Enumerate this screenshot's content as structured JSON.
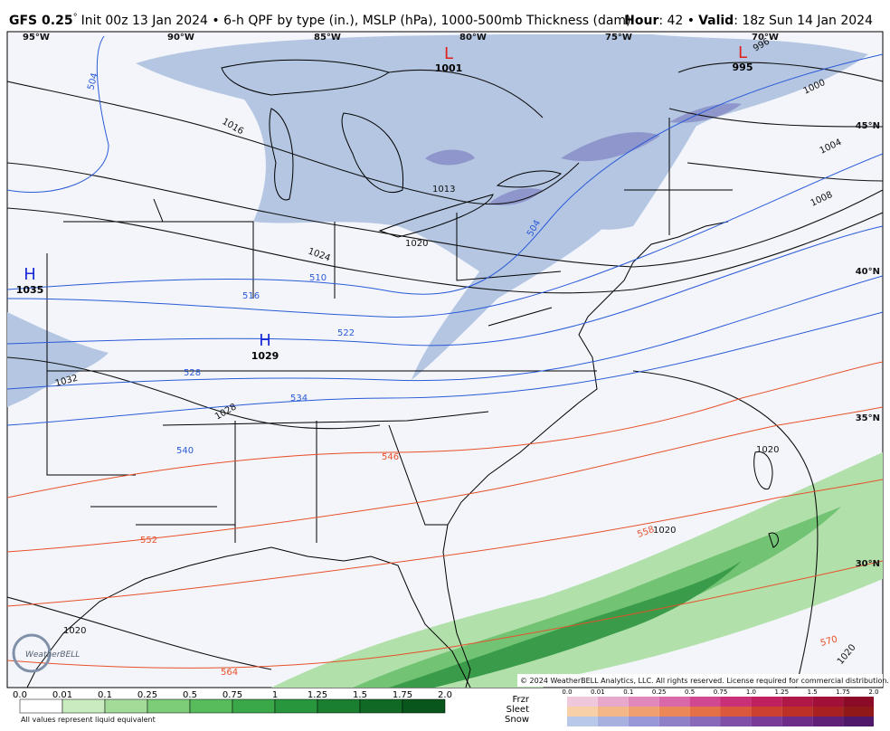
{
  "header": {
    "model": "GFS 0.25",
    "degree": "°",
    "title": "Init 00z 13 Jan 2024 • 6-h QPF by type (in.), MSLP (hPa), 1000-500mb Thickness (dam)",
    "hour_label": "Hour",
    "hour_value": ": 42 •",
    "valid_label": "Valid",
    "valid_value": ": 18z Sun 14 Jan 2024"
  },
  "map": {
    "longitudes": [
      "95°W",
      "90°W",
      "85°W",
      "80°W",
      "75°W",
      "70°W"
    ],
    "latitudes": [
      "45°N",
      "40°N",
      "35°N",
      "30°N"
    ],
    "pressure_centers": [
      {
        "symbol": "L",
        "value": "1001"
      },
      {
        "symbol": "L",
        "value": "995"
      },
      {
        "symbol": "H",
        "value": "1035"
      },
      {
        "symbol": "H",
        "value": "1029"
      }
    ],
    "isobar_labels": [
      "1016",
      "1013",
      "1020",
      "1024",
      "1032",
      "1028",
      "1000",
      "1004",
      "1008",
      "1020",
      "1020",
      "1020",
      "1020",
      "996"
    ],
    "thickness_labels": [
      "504",
      "510",
      "516",
      "522",
      "528",
      "534",
      "540",
      "546",
      "552",
      "558",
      "564",
      "570",
      "504"
    ],
    "copyright": "© 2024 WeatherBELL Analytics, LLC. All rights reserved. License required for commercial distribution.",
    "logo": "WeatherBELL"
  },
  "legend": {
    "qpf_ticks": [
      "0.0",
      "0.01",
      "0.1",
      "0.25",
      "0.5",
      "0.75",
      "1",
      "1.25",
      "1.5",
      "1.75",
      "2.0"
    ],
    "note": "All values represent liquid equivalent",
    "types": [
      "Frzr",
      "Sleet",
      "Snow"
    ],
    "type_ticks": [
      "0.0",
      "0.01",
      "0.1",
      "0.25",
      "0.5",
      "0.75",
      "1.0",
      "1.25",
      "1.5",
      "1.75",
      "2.0"
    ]
  }
}
